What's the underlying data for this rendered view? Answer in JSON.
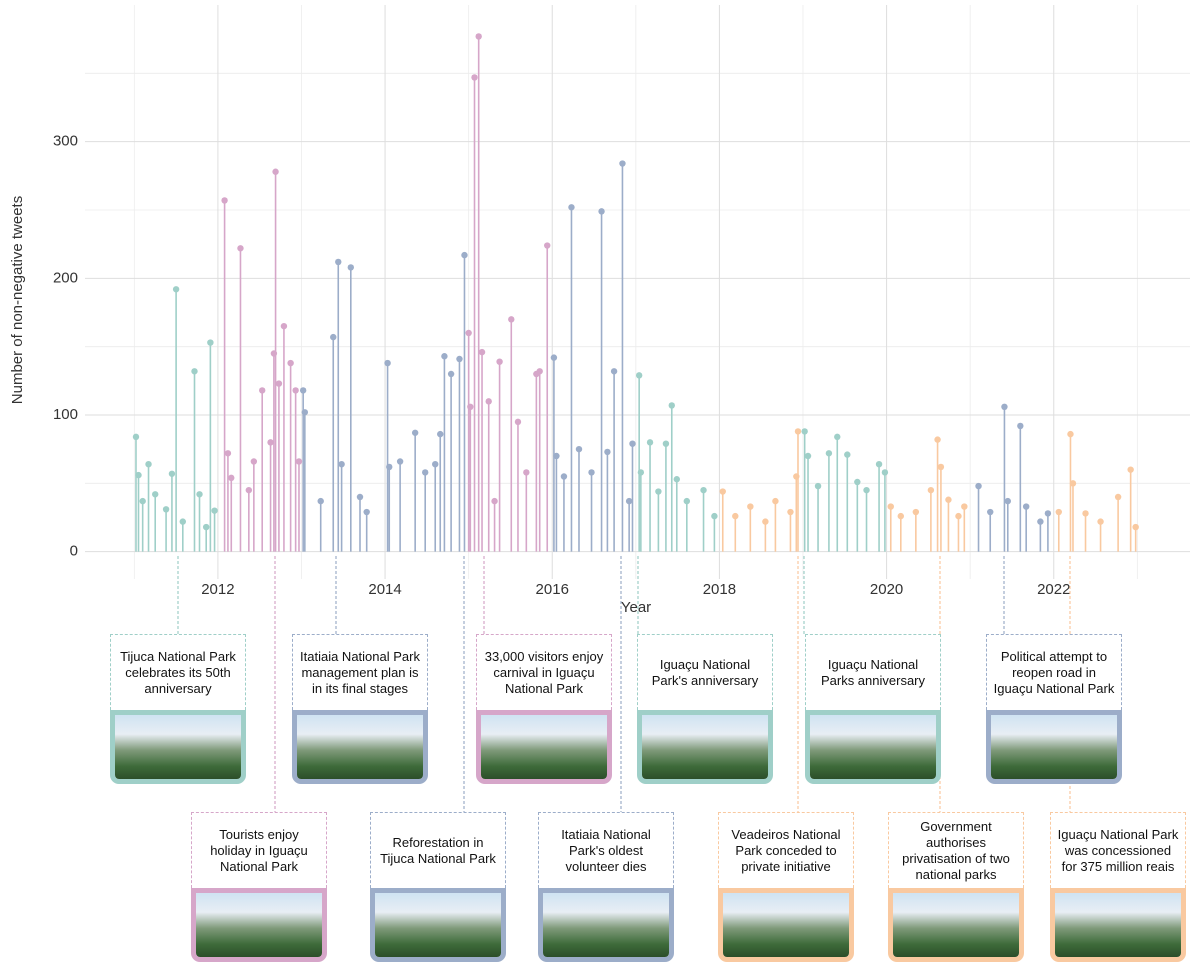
{
  "chart_data": {
    "type": "lollipop",
    "x_label": "Year",
    "y_label": "Number of non-negative tweets",
    "xlim": [
      2010.41,
      2023.63
    ],
    "ylim": [
      -20,
      400
    ],
    "xticks": [
      2012,
      2014,
      2016,
      2018,
      2020,
      2022
    ],
    "yticks": [
      0,
      100,
      200,
      300
    ],
    "minor_xticks": [
      2011,
      2013,
      2015,
      2017,
      2019,
      2021,
      2023
    ],
    "minor_yticks": [
      50,
      150,
      250,
      350
    ],
    "grid": true,
    "series": [
      {
        "color": "#9fcfc8",
        "x": [
          2011.02,
          2011.05,
          2011.1,
          2011.17,
          2011.25,
          2011.38,
          2011.45,
          2011.5,
          2011.58,
          2011.72,
          2011.78,
          2011.86,
          2011.91,
          2011.96
        ],
        "values": [
          84,
          56,
          37,
          64,
          42,
          31,
          57,
          192,
          22,
          132,
          42,
          18,
          153,
          30
        ]
      },
      {
        "color": "#d6a6c9",
        "x": [
          2012.08,
          2012.12,
          2012.16,
          2012.27,
          2012.37,
          2012.43,
          2012.53,
          2012.63,
          2012.67,
          2012.69,
          2012.73,
          2012.79,
          2012.87,
          2012.93,
          2012.97
        ],
        "values": [
          257,
          72,
          54,
          222,
          45,
          66,
          118,
          80,
          145,
          278,
          123,
          165,
          138,
          118,
          66
        ]
      },
      {
        "color": "#9cadc9",
        "x": [
          2013.02,
          2013.04,
          2013.23,
          2013.38,
          2013.44,
          2013.48,
          2013.59,
          2013.7,
          2013.78,
          2014.03,
          2014.05,
          2014.18,
          2014.36,
          2014.48,
          2014.6,
          2014.66,
          2014.71,
          2014.79,
          2014.89,
          2014.95
        ],
        "values": [
          118,
          102,
          37,
          157,
          212,
          64,
          208,
          40,
          29,
          138,
          62,
          66,
          87,
          58,
          64,
          86,
          143,
          130,
          141,
          217
        ]
      },
      {
        "color": "#d6a6c9",
        "x": [
          2015.0,
          2015.02,
          2015.07,
          2015.12,
          2015.16,
          2015.24,
          2015.31,
          2015.37,
          2015.51,
          2015.59,
          2015.69,
          2015.81,
          2015.85,
          2015.94
        ],
        "values": [
          160,
          106,
          347,
          377,
          146,
          110,
          37,
          139,
          170,
          95,
          58,
          130,
          132,
          224
        ]
      },
      {
        "color": "#9cadc9",
        "x": [
          2016.02,
          2016.05,
          2016.14,
          2016.23,
          2016.32,
          2016.47,
          2016.59,
          2016.66,
          2016.74,
          2016.84,
          2016.92,
          2016.96
        ],
        "values": [
          142,
          70,
          55,
          252,
          75,
          58,
          249,
          73,
          132,
          284,
          37,
          79
        ]
      },
      {
        "color": "#9fcfc8",
        "x": [
          2017.04,
          2017.06,
          2017.17,
          2017.27,
          2017.36,
          2017.43,
          2017.49,
          2017.61,
          2017.81,
          2017.94
        ],
        "values": [
          129,
          58,
          80,
          44,
          79,
          107,
          53,
          37,
          45,
          26
        ]
      },
      {
        "color": "#f9c9a0",
        "x": [
          2018.04,
          2018.19,
          2018.37,
          2018.55,
          2018.67,
          2018.85,
          2018.92,
          2018.94
        ],
        "values": [
          44,
          26,
          33,
          22,
          37,
          29,
          55,
          88
        ]
      },
      {
        "color": "#9fcfc8",
        "x": [
          2019.02,
          2019.06,
          2019.18,
          2019.31,
          2019.41,
          2019.53,
          2019.65,
          2019.76,
          2019.91,
          2019.98
        ],
        "values": [
          88,
          70,
          48,
          72,
          84,
          71,
          51,
          45,
          64,
          58
        ]
      },
      {
        "color": "#f9c9a0",
        "x": [
          2020.05,
          2020.17,
          2020.35,
          2020.53,
          2020.61,
          2020.65,
          2020.74,
          2020.86,
          2020.93
        ],
        "values": [
          33,
          26,
          29,
          45,
          82,
          62,
          38,
          26,
          33
        ]
      },
      {
        "color": "#9cadc9",
        "x": [
          2021.1,
          2021.24,
          2021.41,
          2021.45,
          2021.6,
          2021.67,
          2021.84,
          2021.93
        ],
        "values": [
          48,
          29,
          106,
          37,
          92,
          33,
          22,
          28
        ]
      },
      {
        "color": "#f9c9a0",
        "x": [
          2022.06,
          2022.2,
          2022.23,
          2022.38,
          2022.56,
          2022.77,
          2022.92,
          2022.98
        ],
        "values": [
          29,
          86,
          50,
          28,
          22,
          40,
          60,
          18
        ]
      }
    ],
    "annotations": [
      {
        "text": "Tijuca National Park celebrates its 50th anniversary",
        "color": "#9fcfc8"
      },
      {
        "text": "Itatiaia National Park management plan is in its final stages",
        "color": "#9cadc9"
      },
      {
        "text": "33,000 visitors enjoy carnival in Iguaçu National Park",
        "color": "#d6a6c9"
      },
      {
        "text": "Iguaçu National Park's anniversary",
        "color": "#9fcfc8"
      },
      {
        "text": "Iguaçu National Parks anniversary",
        "color": "#9fcfc8"
      },
      {
        "text": "Political attempt to reopen road in Iguaçu National Park",
        "color": "#9cadc9"
      },
      {
        "text": "Tourists enjoy holiday in Iguaçu National Park",
        "color": "#d6a6c9"
      },
      {
        "text": "Reforestation in Tijuca National Park",
        "color": "#9cadc9"
      },
      {
        "text": "Itatiaia National Park's oldest volunteer dies",
        "color": "#9cadc9"
      },
      {
        "text": "Veadeiros National Park conceded to private initiative",
        "color": "#f9c9a0"
      },
      {
        "text": "Government authorises privatisation of two national parks",
        "color": "#f9c9a0"
      },
      {
        "text": "Iguaçu National Park was concessioned for 375 million reais",
        "color": "#f9c9a0"
      }
    ]
  }
}
